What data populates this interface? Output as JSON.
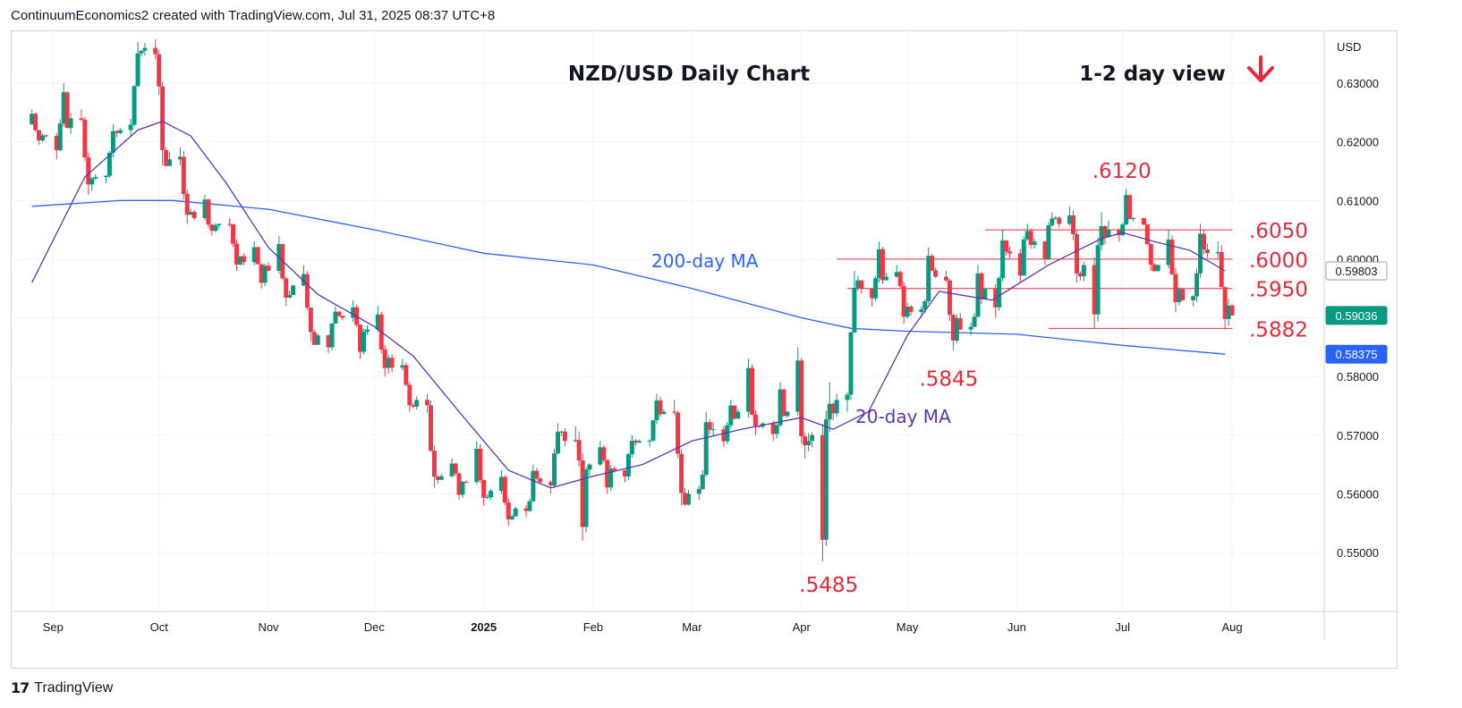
{
  "header": {
    "attribution": "ContinuumEconomics2 created with TradingView.com, Jul 31, 2025 08:37 UTC+8"
  },
  "footer": {
    "brand": "TradingView"
  },
  "colors": {
    "up": "#089981",
    "down": "#f23645",
    "ma20": "#5e35b1",
    "ma200": "#2962ff",
    "level": "#e8293c",
    "price_badge": "#089981"
  },
  "chart_data": {
    "type": "candlestick",
    "title": "NZD/USD Daily Chart",
    "view": "1-2 day view",
    "view_icon": "arrow-down-icon",
    "currency": "USD",
    "ylim": [
      0.5445,
      0.6395
    ],
    "yticks": [
      "0.63000",
      "0.62000",
      "0.61000",
      "0.60000",
      "0.58000",
      "0.57000",
      "0.56000",
      "0.55000"
    ],
    "xticks": [
      "Sep",
      "Oct",
      "Nov",
      "Dec",
      "2025",
      "Feb",
      "Mar",
      "Apr",
      "May",
      "Jun",
      "Jul",
      "Aug"
    ],
    "price_labels": [
      {
        "name": "20-day MA",
        "value": "0.59803"
      },
      {
        "name": "last price",
        "value": "0.59036"
      },
      {
        "name": "200-day MA",
        "value": "0.58375"
      }
    ],
    "levels": [
      {
        "label": ".6050",
        "value": 0.605,
        "from": "2025-05-23",
        "to": "2025-07-30"
      },
      {
        "label": ".6000",
        "value": 0.6,
        "from": "2025-04-11",
        "to": "2025-07-30"
      },
      {
        "label": ".5950",
        "value": 0.595,
        "from": "2025-04-14",
        "to": "2025-07-30"
      },
      {
        "label": ".5882",
        "value": 0.5882,
        "from": "2025-06-10",
        "to": "2025-07-30"
      }
    ],
    "annotations": [
      {
        "text": ".6120",
        "date": "2025-07-01",
        "value": 0.612
      },
      {
        "text": ".5845",
        "date": "2025-05-12",
        "value": 0.5845
      },
      {
        "text": ".5485",
        "date": "2025-04-09",
        "value": 0.5485
      },
      {
        "text": "200-day MA"
      },
      {
        "text": "20-day MA"
      }
    ],
    "ohlc": [
      [
        "2024-08-26",
        0.623,
        0.6255,
        0.6195,
        0.621
      ],
      [
        "2024-09-02",
        0.621,
        0.63,
        0.617,
        0.624
      ],
      [
        "2024-09-09",
        0.624,
        0.6255,
        0.611,
        0.614
      ],
      [
        "2024-09-16",
        0.614,
        0.623,
        0.613,
        0.622
      ],
      [
        "2024-09-23",
        0.622,
        0.637,
        0.621,
        0.636
      ],
      [
        "2024-09-30",
        0.636,
        0.6375,
        0.616,
        0.617
      ],
      [
        "2024-10-07",
        0.617,
        0.619,
        0.606,
        0.607
      ],
      [
        "2024-10-14",
        0.607,
        0.611,
        0.604,
        0.606
      ],
      [
        "2024-10-21",
        0.606,
        0.607,
        0.598,
        0.5995
      ],
      [
        "2024-10-28",
        0.5995,
        0.603,
        0.595,
        0.598
      ],
      [
        "2024-11-04",
        0.598,
        0.604,
        0.592,
        0.5955
      ],
      [
        "2024-11-11",
        0.5955,
        0.599,
        0.586,
        0.587
      ],
      [
        "2024-11-18",
        0.587,
        0.592,
        0.584,
        0.59
      ],
      [
        "2024-11-25",
        0.59,
        0.593,
        0.583,
        0.588
      ],
      [
        "2024-12-02",
        0.588,
        0.592,
        0.58,
        0.5815
      ],
      [
        "2024-12-09",
        0.5815,
        0.583,
        0.574,
        0.576
      ],
      [
        "2024-12-16",
        0.576,
        0.577,
        0.561,
        0.563
      ],
      [
        "2024-12-23",
        0.563,
        0.566,
        0.559,
        0.562
      ],
      [
        "2024-12-30",
        0.562,
        0.569,
        0.558,
        0.5605
      ],
      [
        "2025-01-06",
        0.5605,
        0.564,
        0.5545,
        0.5575
      ],
      [
        "2025-01-13",
        0.5575,
        0.565,
        0.556,
        0.562
      ],
      [
        "2025-01-20",
        0.562,
        0.572,
        0.56,
        0.569
      ],
      [
        "2025-01-27",
        0.569,
        0.5715,
        0.552,
        0.565
      ],
      [
        "2025-02-03",
        0.565,
        0.569,
        0.56,
        0.564
      ],
      [
        "2025-02-10",
        0.564,
        0.57,
        0.562,
        0.569
      ],
      [
        "2025-02-17",
        0.569,
        0.577,
        0.568,
        0.574
      ],
      [
        "2025-02-24",
        0.574,
        0.576,
        0.558,
        0.56
      ],
      [
        "2025-03-03",
        0.56,
        0.574,
        0.559,
        0.571
      ],
      [
        "2025-03-10",
        0.571,
        0.576,
        0.568,
        0.574
      ],
      [
        "2025-03-17",
        0.574,
        0.583,
        0.57,
        0.572
      ],
      [
        "2025-03-24",
        0.572,
        0.579,
        0.569,
        0.574
      ],
      [
        "2025-03-31",
        0.574,
        0.585,
        0.566,
        0.57
      ],
      [
        "2025-04-07",
        0.57,
        0.579,
        0.5485,
        0.576
      ],
      [
        "2025-04-14",
        0.576,
        0.598,
        0.574,
        0.595
      ],
      [
        "2025-04-21",
        0.595,
        0.603,
        0.592,
        0.597
      ],
      [
        "2025-04-28",
        0.597,
        0.599,
        0.589,
        0.591
      ],
      [
        "2025-05-05",
        0.591,
        0.602,
        0.59,
        0.597
      ],
      [
        "2025-05-12",
        0.597,
        0.598,
        0.5845,
        0.588
      ],
      [
        "2025-05-19",
        0.588,
        0.599,
        0.587,
        0.595
      ],
      [
        "2025-05-26",
        0.595,
        0.605,
        0.59,
        0.601
      ],
      [
        "2025-06-02",
        0.601,
        0.606,
        0.596,
        0.603
      ],
      [
        "2025-06-09",
        0.603,
        0.608,
        0.599,
        0.606
      ],
      [
        "2025-06-16",
        0.606,
        0.609,
        0.596,
        0.599
      ],
      [
        "2025-06-23",
        0.599,
        0.608,
        0.5882,
        0.605
      ],
      [
        "2025-06-30",
        0.605,
        0.612,
        0.603,
        0.607
      ],
      [
        "2025-07-07",
        0.607,
        0.607,
        0.598,
        0.599
      ],
      [
        "2025-07-14",
        0.599,
        0.605,
        0.591,
        0.593
      ],
      [
        "2025-07-21",
        0.593,
        0.606,
        0.592,
        0.601
      ],
      [
        "2025-07-28",
        0.601,
        0.603,
        0.588,
        0.5904
      ]
    ],
    "ma20": [
      [
        "2024-08-26",
        0.596
      ],
      [
        "2024-09-10",
        0.614
      ],
      [
        "2024-09-25",
        0.622
      ],
      [
        "2024-10-02",
        0.6235
      ],
      [
        "2024-10-10",
        0.621
      ],
      [
        "2024-10-20",
        0.613
      ],
      [
        "2024-11-01",
        0.602
      ],
      [
        "2024-11-15",
        0.594
      ],
      [
        "2024-12-01",
        0.5885
      ],
      [
        "2024-12-12",
        0.5835
      ],
      [
        "2024-12-25",
        0.574
      ],
      [
        "2025-01-08",
        0.564
      ],
      [
        "2025-01-20",
        0.561
      ],
      [
        "2025-02-01",
        0.563
      ],
      [
        "2025-02-15",
        0.565
      ],
      [
        "2025-03-01",
        0.569
      ],
      [
        "2025-03-15",
        0.571
      ],
      [
        "2025-04-01",
        0.573
      ],
      [
        "2025-04-10",
        0.571
      ],
      [
        "2025-04-20",
        0.574
      ],
      [
        "2025-05-01",
        0.587
      ],
      [
        "2025-05-10",
        0.5945
      ],
      [
        "2025-05-25",
        0.593
      ],
      [
        "2025-06-10",
        0.599
      ],
      [
        "2025-06-25",
        0.6035
      ],
      [
        "2025-07-01",
        0.6045
      ],
      [
        "2025-07-10",
        0.603
      ],
      [
        "2025-07-20",
        0.6015
      ],
      [
        "2025-07-30",
        0.598
      ]
    ],
    "ma200": [
      [
        "2024-08-26",
        0.609
      ],
      [
        "2024-09-20",
        0.61
      ],
      [
        "2024-10-05",
        0.61
      ],
      [
        "2024-11-01",
        0.6085
      ],
      [
        "2024-12-01",
        0.605
      ],
      [
        "2025-01-01",
        0.601
      ],
      [
        "2025-02-01",
        0.599
      ],
      [
        "2025-03-01",
        0.595
      ],
      [
        "2025-04-01",
        0.59
      ],
      [
        "2025-04-15",
        0.5882
      ],
      [
        "2025-05-01",
        0.5877
      ],
      [
        "2025-06-01",
        0.5872
      ],
      [
        "2025-07-01",
        0.5853
      ],
      [
        "2025-07-30",
        0.5838
      ]
    ]
  }
}
